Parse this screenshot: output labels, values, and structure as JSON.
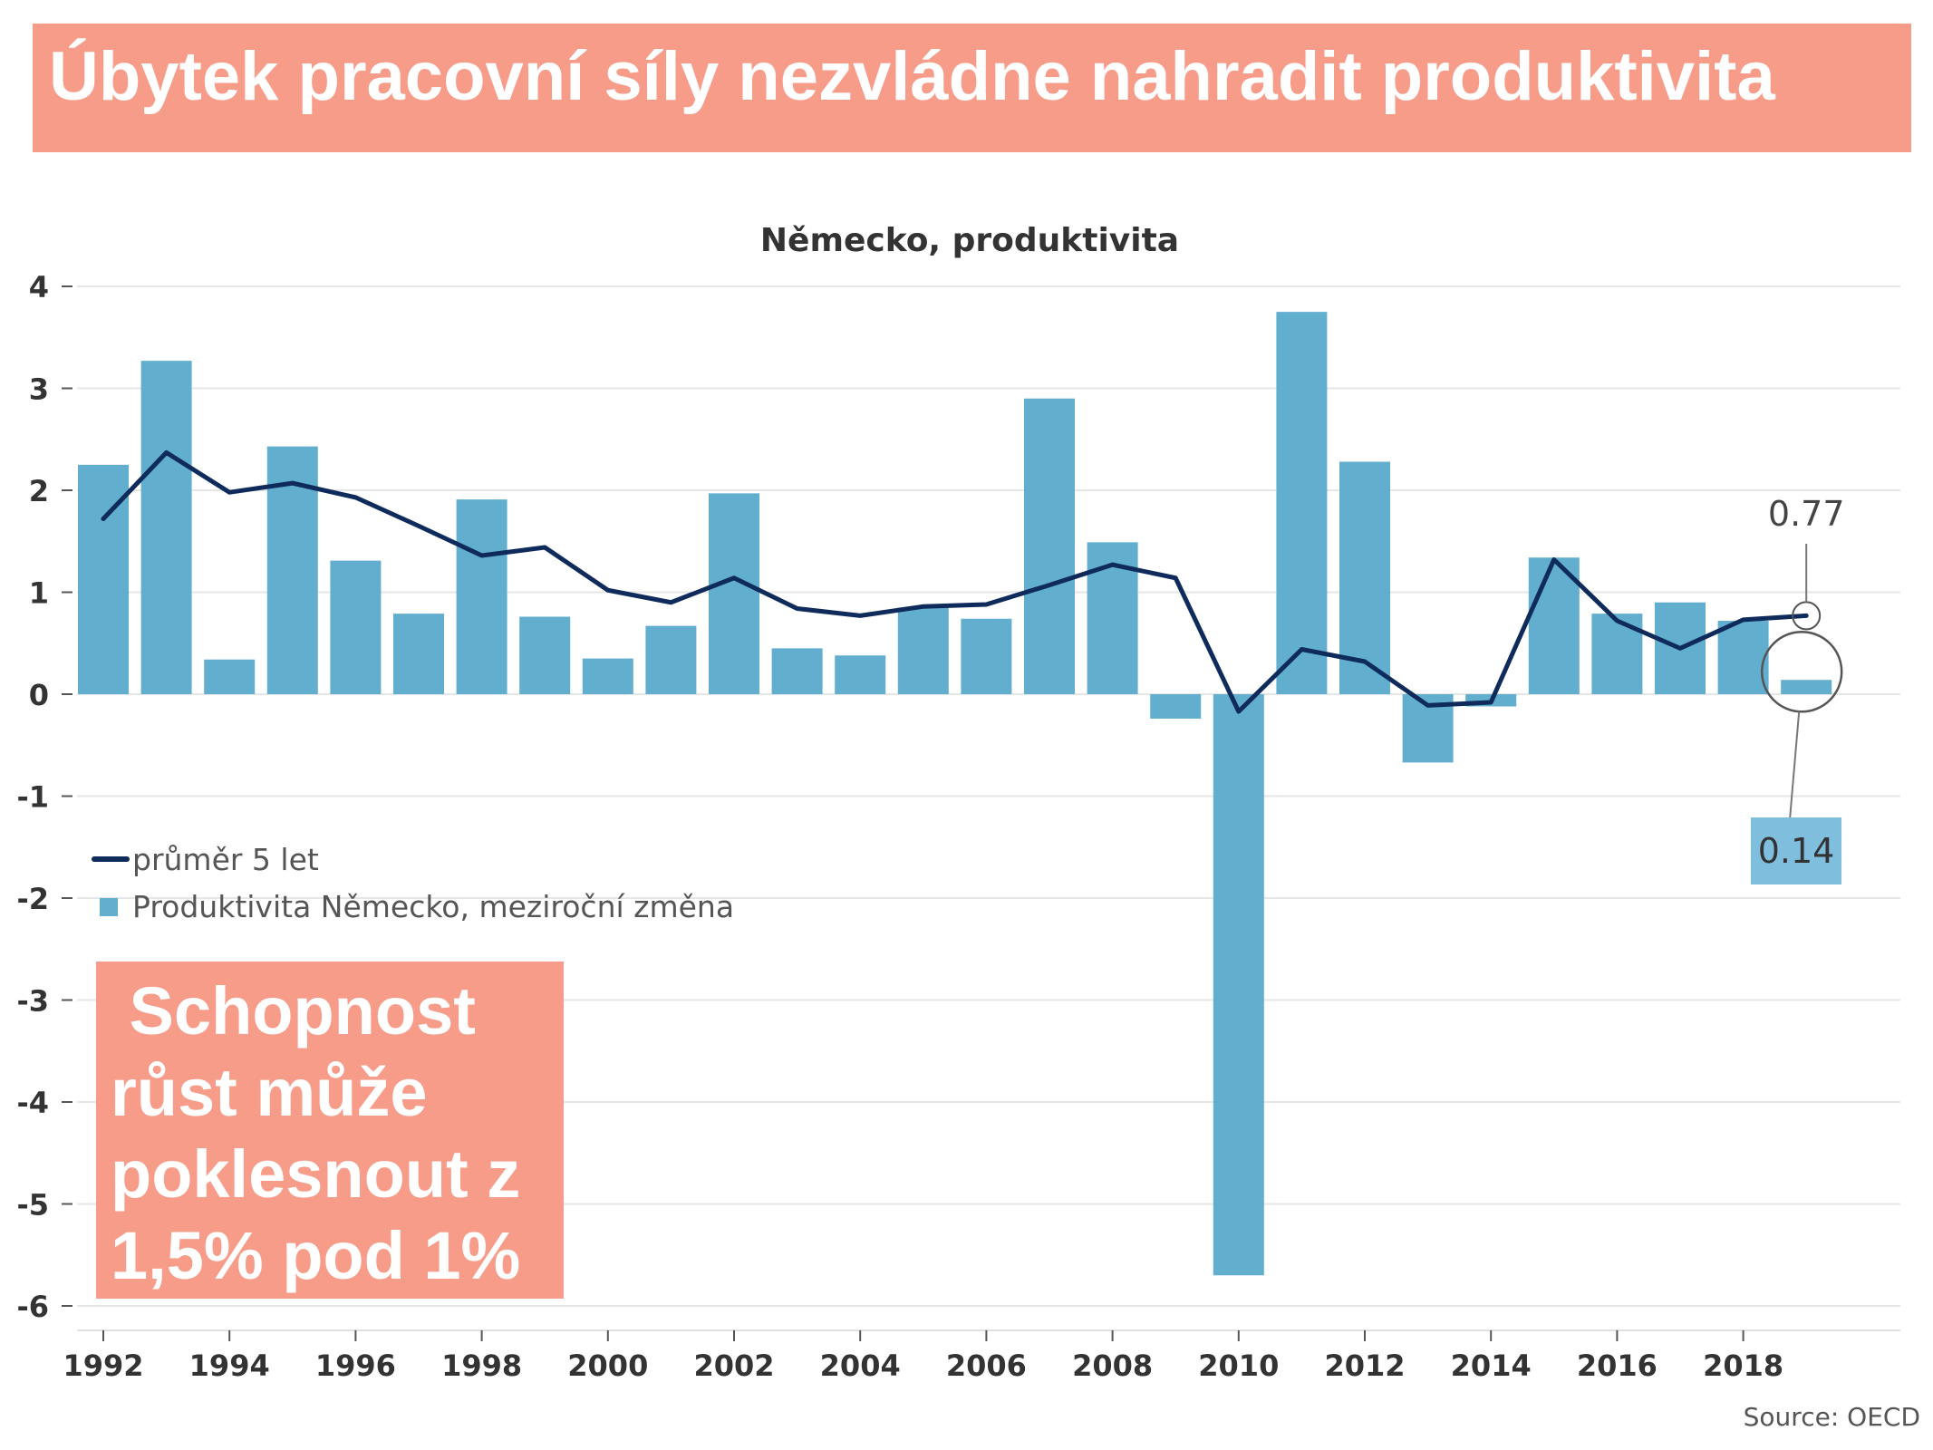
{
  "header": {
    "title": "Úbytek pracovní síly nezvládne nahradit produktivita"
  },
  "callout": {
    "lines": [
      " Schopnost",
      "růst může",
      "poklesnout z",
      "1,5% pod 1%"
    ]
  },
  "source": "Source: OECD",
  "colors": {
    "banner": "#F89C8A",
    "bar": "#62AECF",
    "line": "#0E2B5C",
    "label_box": "#7FBFDD"
  },
  "chart_data": {
    "type": "bar",
    "title": "Německo, produktivita",
    "x": [
      1992,
      1993,
      1994,
      1995,
      1996,
      1997,
      1998,
      1999,
      2000,
      2001,
      2002,
      2003,
      2004,
      2005,
      2006,
      2007,
      2008,
      2009,
      2010,
      2011,
      2012,
      2013,
      2014,
      2015,
      2016,
      2017,
      2018,
      2019
    ],
    "x_tick_labels": [
      "1992",
      "1994",
      "1996",
      "1998",
      "2000",
      "2002",
      "2004",
      "2006",
      "2008",
      "2010",
      "2012",
      "2014",
      "2016",
      "2018"
    ],
    "ylim": [
      -6,
      4
    ],
    "y_ticks": [
      "4",
      "3",
      "2",
      "1",
      "0",
      "-1",
      "-2",
      "-3",
      "-4",
      "-5",
      "-6"
    ],
    "grid": true,
    "legend_position": "left",
    "series": [
      {
        "name": "Produktivita Německo, meziroční změna",
        "type": "bar",
        "values": [
          2.25,
          3.27,
          0.34,
          2.43,
          1.31,
          0.79,
          1.91,
          0.76,
          0.35,
          0.67,
          1.97,
          0.45,
          0.38,
          0.85,
          0.74,
          2.9,
          1.49,
          -0.24,
          -5.7,
          3.75,
          2.28,
          -0.67,
          -0.12,
          1.34,
          0.79,
          0.9,
          0.72,
          0.14
        ]
      },
      {
        "name": "průměr 5 let",
        "type": "line",
        "values": [
          1.72,
          2.37,
          1.98,
          2.07,
          1.93,
          1.65,
          1.36,
          1.44,
          1.02,
          0.9,
          1.14,
          0.84,
          0.77,
          0.86,
          0.88,
          1.07,
          1.27,
          1.14,
          -0.17,
          0.44,
          0.32,
          -0.11,
          -0.08,
          1.32,
          0.72,
          0.45,
          0.73,
          0.77
        ]
      }
    ],
    "annotations": [
      {
        "text": "0.77",
        "x": 2019,
        "y": 0.77,
        "series": "průměr 5 let"
      },
      {
        "text": "0.14",
        "x": 2019,
        "y": 0.14,
        "series": "Produktivita Německo, meziroční změna"
      }
    ]
  }
}
